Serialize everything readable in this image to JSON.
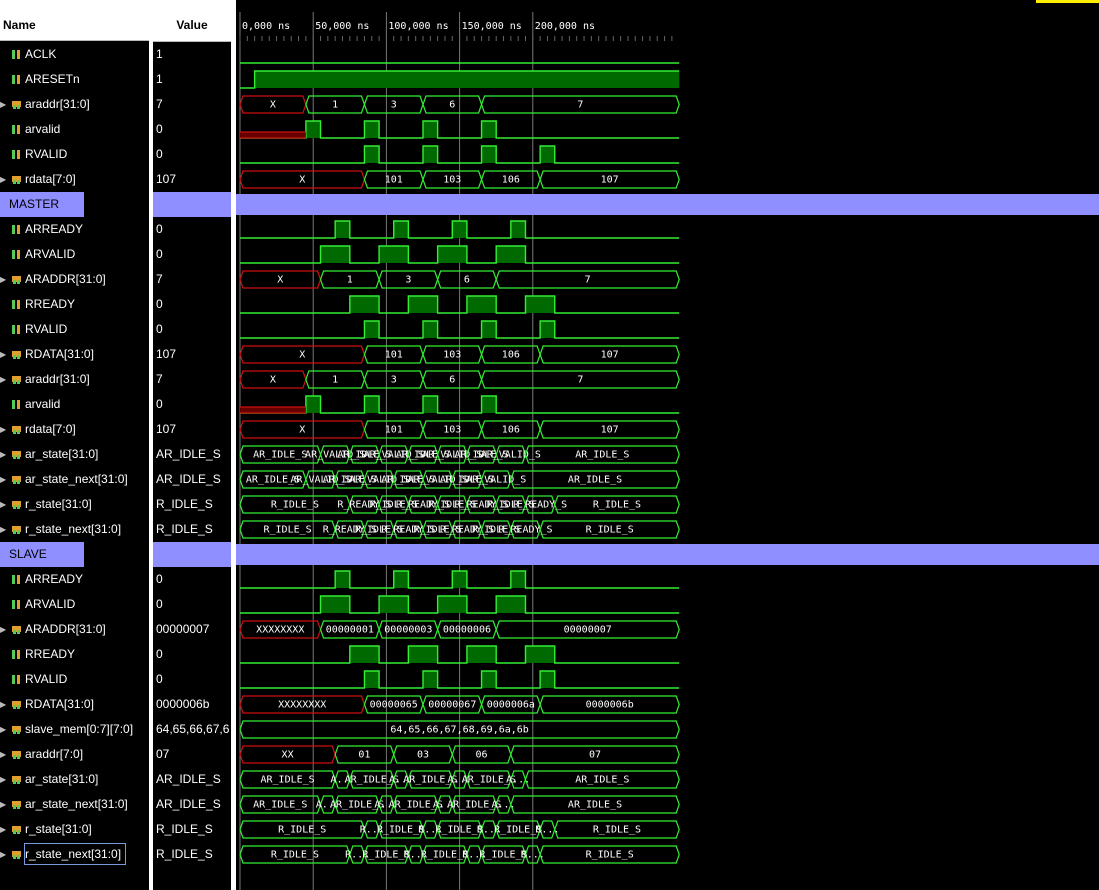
{
  "header": {
    "name_col": "Name",
    "value_col": "Value"
  },
  "timeline": {
    "ticks": [
      "0,000 ns",
      "50,000 ns",
      "100,000 ns",
      "150,000 ns",
      "200,000 ns"
    ]
  },
  "colors": {
    "wave": "#33ee33",
    "fill": "#006a00",
    "unknown": "#cc1111",
    "divider": "#8f8fff"
  },
  "rows": [
    {
      "name": "ACLK",
      "value": "1",
      "icon": "scalar-signal-icon"
    },
    {
      "name": "ARESETn",
      "value": "1",
      "icon": "scalar-signal-icon"
    },
    {
      "name": "araddr[31:0]",
      "value": "7",
      "icon": "bus-signal-icon",
      "expand": true
    },
    {
      "name": "arvalid",
      "value": "0",
      "icon": "scalar-signal-icon"
    },
    {
      "name": "RVALID",
      "value": "0",
      "icon": "scalar-signal-icon"
    },
    {
      "name": "rdata[7:0]",
      "value": "107",
      "icon": "bus-signal-icon",
      "expand": true
    },
    {
      "name": "MASTER",
      "value": "",
      "divider": true
    },
    {
      "name": "ARREADY",
      "value": "0",
      "icon": "scalar-signal-icon"
    },
    {
      "name": "ARVALID",
      "value": "0",
      "icon": "scalar-signal-icon"
    },
    {
      "name": "ARADDR[31:0]",
      "value": "7",
      "icon": "bus-signal-icon",
      "expand": true
    },
    {
      "name": "RREADY",
      "value": "0",
      "icon": "scalar-signal-icon"
    },
    {
      "name": "RVALID",
      "value": "0",
      "icon": "scalar-signal-icon"
    },
    {
      "name": "RDATA[31:0]",
      "value": "107",
      "icon": "bus-signal-icon",
      "expand": true
    },
    {
      "name": "araddr[31:0]",
      "value": "7",
      "icon": "bus-signal-icon",
      "expand": true
    },
    {
      "name": "arvalid",
      "value": "0",
      "icon": "scalar-signal-icon"
    },
    {
      "name": "rdata[7:0]",
      "value": "107",
      "icon": "bus-signal-icon",
      "expand": true
    },
    {
      "name": "ar_state[31:0]",
      "value": "AR_IDLE_S",
      "icon": "bus-signal-icon",
      "expand": true
    },
    {
      "name": "ar_state_next[31:0]",
      "value": "AR_IDLE_S",
      "icon": "bus-signal-icon",
      "expand": true
    },
    {
      "name": "r_state[31:0]",
      "value": "R_IDLE_S",
      "icon": "bus-signal-icon",
      "expand": true
    },
    {
      "name": "r_state_next[31:0]",
      "value": "R_IDLE_S",
      "icon": "bus-signal-icon",
      "expand": true
    },
    {
      "name": "SLAVE",
      "value": "",
      "divider": true
    },
    {
      "name": "ARREADY",
      "value": "0",
      "icon": "scalar-signal-icon"
    },
    {
      "name": "ARVALID",
      "value": "0",
      "icon": "scalar-signal-icon"
    },
    {
      "name": "ARADDR[31:0]",
      "value": "00000007",
      "icon": "bus-signal-icon",
      "expand": true
    },
    {
      "name": "RREADY",
      "value": "0",
      "icon": "scalar-signal-icon"
    },
    {
      "name": "RVALID",
      "value": "0",
      "icon": "scalar-signal-icon"
    },
    {
      "name": "RDATA[31:0]",
      "value": "0000006b",
      "icon": "bus-signal-icon",
      "expand": true
    },
    {
      "name": "slave_mem[0:7][7:0]",
      "value": "64,65,66,67,6",
      "icon": "bus-signal-icon",
      "expand": true
    },
    {
      "name": "araddr[7:0]",
      "value": "07",
      "icon": "bus-signal-icon",
      "expand": true
    },
    {
      "name": "ar_state[31:0]",
      "value": "AR_IDLE_S",
      "icon": "bus-signal-icon",
      "expand": true
    },
    {
      "name": "ar_state_next[31:0]",
      "value": "AR_IDLE_S",
      "icon": "bus-signal-icon",
      "expand": true
    },
    {
      "name": "r_state[31:0]",
      "value": "R_IDLE_S",
      "icon": "bus-signal-icon",
      "expand": true
    },
    {
      "name": "r_state_next[31:0]",
      "value": "R_IDLE_S",
      "icon": "bus-signal-icon",
      "expand": true,
      "selected": true
    }
  ],
  "waves": [
    {
      "type": "clk"
    },
    {
      "type": "bit",
      "init": 0,
      "edges": [
        4
      ]
    },
    {
      "type": "bus",
      "segs": [
        [
          0,
          18,
          "X",
          1
        ],
        [
          18,
          34,
          "1"
        ],
        [
          34,
          50,
          "3"
        ],
        [
          50,
          66,
          "6"
        ],
        [
          66,
          120,
          "7"
        ]
      ]
    },
    {
      "type": "bit",
      "init": 0,
      "low_unknown": [
        0,
        18
      ],
      "edges": [
        18,
        22,
        34,
        38,
        50,
        54,
        66,
        70
      ]
    },
    {
      "type": "bit",
      "init": 0,
      "edges": [
        34,
        38,
        50,
        54,
        66,
        70,
        82,
        86
      ]
    },
    {
      "type": "bus",
      "segs": [
        [
          0,
          34,
          "X",
          1
        ],
        [
          34,
          50,
          "101"
        ],
        [
          50,
          66,
          "103"
        ],
        [
          66,
          82,
          "106"
        ],
        [
          82,
          120,
          "107"
        ]
      ]
    },
    {
      "type": "divider"
    },
    {
      "type": "bit",
      "init": 0,
      "edges": [
        26,
        30,
        42,
        46,
        58,
        62,
        74,
        78
      ]
    },
    {
      "type": "bit",
      "init": 0,
      "edges": [
        22,
        30,
        38,
        46,
        54,
        62,
        70,
        78
      ]
    },
    {
      "type": "bus",
      "segs": [
        [
          0,
          22,
          "X",
          1
        ],
        [
          22,
          38,
          "1"
        ],
        [
          38,
          54,
          "3"
        ],
        [
          54,
          70,
          "6"
        ],
        [
          70,
          120,
          "7"
        ]
      ]
    },
    {
      "type": "bit",
      "init": 0,
      "edges": [
        30,
        38,
        46,
        54,
        62,
        70,
        78,
        86
      ]
    },
    {
      "type": "bit",
      "init": 0,
      "edges": [
        34,
        38,
        50,
        54,
        66,
        70,
        82,
        86
      ]
    },
    {
      "type": "bus",
      "segs": [
        [
          0,
          34,
          "X",
          1
        ],
        [
          34,
          50,
          "101"
        ],
        [
          50,
          66,
          "103"
        ],
        [
          66,
          82,
          "106"
        ],
        [
          82,
          120,
          "107"
        ]
      ]
    },
    {
      "type": "bus",
      "segs": [
        [
          0,
          18,
          "X",
          1
        ],
        [
          18,
          34,
          "1"
        ],
        [
          34,
          50,
          "3"
        ],
        [
          50,
          66,
          "6"
        ],
        [
          66,
          120,
          "7"
        ]
      ]
    },
    {
      "type": "bit",
      "init": 0,
      "low_unknown": [
        0,
        18
      ],
      "edges": [
        18,
        22,
        34,
        38,
        50,
        54,
        66,
        70
      ]
    },
    {
      "type": "bus",
      "segs": [
        [
          0,
          34,
          "X",
          1
        ],
        [
          34,
          50,
          "101"
        ],
        [
          50,
          66,
          "103"
        ],
        [
          66,
          82,
          "106"
        ],
        [
          82,
          120,
          "107"
        ]
      ]
    },
    {
      "type": "bus",
      "segs": [
        [
          0,
          22,
          "AR_IDLE_S"
        ],
        [
          22,
          30,
          "AR_VALID_S"
        ],
        [
          30,
          38,
          "AR_IDLE_S"
        ],
        [
          38,
          46,
          "AR_VALID_S"
        ],
        [
          46,
          54,
          "AR_IDLE_S"
        ],
        [
          54,
          62,
          "AR_VALID_S"
        ],
        [
          62,
          70,
          "AR_IDLE_S"
        ],
        [
          70,
          78,
          "AR_VALID_S"
        ],
        [
          78,
          120,
          "AR_IDLE_S"
        ]
      ]
    },
    {
      "type": "bus",
      "segs": [
        [
          0,
          18,
          "AR_IDLE_S"
        ],
        [
          18,
          26,
          "AR_VALID_S"
        ],
        [
          26,
          34,
          "AR_IDLE_S"
        ],
        [
          34,
          42,
          "AR_VALID_S"
        ],
        [
          42,
          50,
          "AR_IDLE_S"
        ],
        [
          50,
          58,
          "AR_VALID_S"
        ],
        [
          58,
          66,
          "AR_IDLE_S"
        ],
        [
          66,
          74,
          "AR_VALID_S"
        ],
        [
          74,
          120,
          "AR_IDLE_S"
        ]
      ]
    },
    {
      "type": "bus",
      "segs": [
        [
          0,
          30,
          "R_IDLE_S"
        ],
        [
          30,
          38,
          "R_READY_S"
        ],
        [
          38,
          46,
          "R_IDLE_S"
        ],
        [
          46,
          54,
          "R_READY_S"
        ],
        [
          54,
          62,
          "R_IDLE_S"
        ],
        [
          62,
          70,
          "R_READY_S"
        ],
        [
          70,
          78,
          "R_IDLE_S"
        ],
        [
          78,
          86,
          "R_READY_S"
        ],
        [
          86,
          120,
          "R_IDLE_S"
        ]
      ]
    },
    {
      "type": "bus",
      "segs": [
        [
          0,
          26,
          "R_IDLE_S"
        ],
        [
          26,
          34,
          "R_READY_S"
        ],
        [
          34,
          42,
          "R_IDLE_S"
        ],
        [
          42,
          50,
          "R_READY_S"
        ],
        [
          50,
          58,
          "R_IDLE_S"
        ],
        [
          58,
          66,
          "R_READY_S"
        ],
        [
          66,
          74,
          "R_IDLE_S"
        ],
        [
          74,
          82,
          "R_READY_S"
        ],
        [
          82,
          120,
          "R_IDLE_S"
        ]
      ]
    },
    {
      "type": "divider"
    },
    {
      "type": "bit",
      "init": 0,
      "edges": [
        26,
        30,
        42,
        46,
        58,
        62,
        74,
        78
      ]
    },
    {
      "type": "bit",
      "init": 0,
      "edges": [
        22,
        30,
        38,
        46,
        54,
        62,
        70,
        78
      ]
    },
    {
      "type": "bus",
      "segs": [
        [
          0,
          22,
          "XXXXXXXX",
          1
        ],
        [
          22,
          38,
          "00000001"
        ],
        [
          38,
          54,
          "00000003"
        ],
        [
          54,
          70,
          "00000006"
        ],
        [
          70,
          120,
          "00000007"
        ]
      ]
    },
    {
      "type": "bit",
      "init": 0,
      "edges": [
        30,
        38,
        46,
        54,
        62,
        70,
        78,
        86
      ]
    },
    {
      "type": "bit",
      "init": 0,
      "edges": [
        34,
        38,
        50,
        54,
        66,
        70,
        82,
        86
      ]
    },
    {
      "type": "bus",
      "segs": [
        [
          0,
          34,
          "XXXXXXXX",
          1
        ],
        [
          34,
          50,
          "00000065"
        ],
        [
          50,
          66,
          "00000067"
        ],
        [
          66,
          82,
          "0000006a"
        ],
        [
          82,
          120,
          "0000006b"
        ]
      ]
    },
    {
      "type": "bus",
      "segs": [
        [
          0,
          120,
          "64,65,66,67,68,69,6a,6b"
        ]
      ]
    },
    {
      "type": "bus",
      "segs": [
        [
          0,
          26,
          "XX",
          1
        ],
        [
          26,
          42,
          "01"
        ],
        [
          42,
          58,
          "03"
        ],
        [
          58,
          74,
          "06"
        ],
        [
          74,
          120,
          "07"
        ]
      ]
    },
    {
      "type": "bus",
      "segs": [
        [
          0,
          26,
          "AR_IDLE_S"
        ],
        [
          26,
          30,
          "A..."
        ],
        [
          30,
          42,
          "AR_IDLE_S"
        ],
        [
          42,
          46,
          "A..."
        ],
        [
          46,
          58,
          "AR_IDLE_S"
        ],
        [
          58,
          62,
          "A..."
        ],
        [
          62,
          74,
          "AR_IDLE_S"
        ],
        [
          74,
          78,
          "A..."
        ],
        [
          78,
          120,
          "AR_IDLE_S"
        ]
      ]
    },
    {
      "type": "bus",
      "segs": [
        [
          0,
          22,
          "AR_IDLE_S"
        ],
        [
          22,
          26,
          "A..."
        ],
        [
          26,
          38,
          "AR_IDLE_S"
        ],
        [
          38,
          42,
          "A..."
        ],
        [
          42,
          54,
          "AR_IDLE_S"
        ],
        [
          54,
          58,
          "A..."
        ],
        [
          58,
          70,
          "AR_IDLE_S"
        ],
        [
          70,
          74,
          "A..."
        ],
        [
          74,
          120,
          "AR_IDLE_S"
        ]
      ]
    },
    {
      "type": "bus",
      "segs": [
        [
          0,
          34,
          "R_IDLE_S"
        ],
        [
          34,
          38,
          "R..."
        ],
        [
          38,
          50,
          "R_IDLE_S"
        ],
        [
          50,
          54,
          "R..."
        ],
        [
          54,
          66,
          "R_IDLE_S"
        ],
        [
          66,
          70,
          "R..."
        ],
        [
          70,
          82,
          "R_IDLE_S"
        ],
        [
          82,
          86,
          "R..."
        ],
        [
          86,
          120,
          "R_IDLE_S"
        ]
      ]
    },
    {
      "type": "bus",
      "segs": [
        [
          0,
          30,
          "R_IDLE_S"
        ],
        [
          30,
          34,
          "R..."
        ],
        [
          34,
          46,
          "R_IDLE_S"
        ],
        [
          46,
          50,
          "R..."
        ],
        [
          50,
          62,
          "R_IDLE_S"
        ],
        [
          62,
          66,
          "R..."
        ],
        [
          66,
          78,
          "R_IDLE_S"
        ],
        [
          78,
          82,
          "R..."
        ],
        [
          82,
          120,
          "R_IDLE_S"
        ]
      ]
    }
  ]
}
